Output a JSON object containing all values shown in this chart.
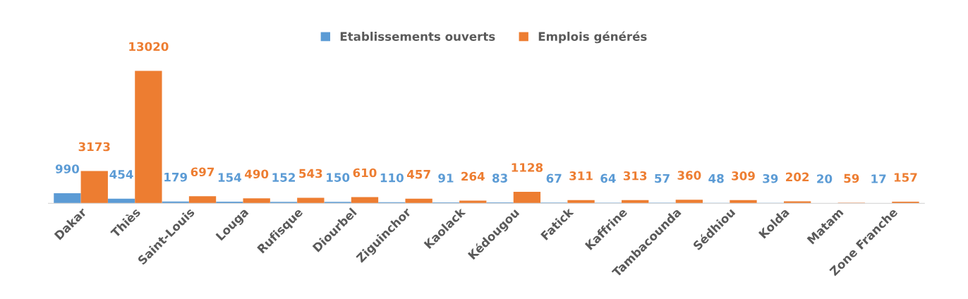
{
  "chart_data": {
    "type": "bar",
    "categories": [
      "Dakar",
      "Thiès",
      "Saint-Louis",
      "Louga",
      "Rufisque",
      "Diourbel",
      "Ziguinchor",
      "Kaolack",
      "Kédougou",
      "Fatick",
      "Kaffrine",
      "Tambacounda",
      "Sédhiou",
      "Kolda",
      "Matam",
      "Zone Franche"
    ],
    "series": [
      {
        "name": "Etablissements ouverts",
        "color": "#5b9bd5",
        "values": [
          990,
          454,
          179,
          154,
          152,
          150,
          110,
          91,
          83,
          67,
          64,
          57,
          48,
          39,
          20,
          17
        ]
      },
      {
        "name": "Emplois générés",
        "color": "#ed7d31",
        "values": [
          3173,
          13020,
          697,
          490,
          543,
          610,
          457,
          264,
          1128,
          311,
          313,
          360,
          309,
          202,
          59,
          157
        ]
      }
    ],
    "data_labels": true,
    "legend": "top"
  }
}
